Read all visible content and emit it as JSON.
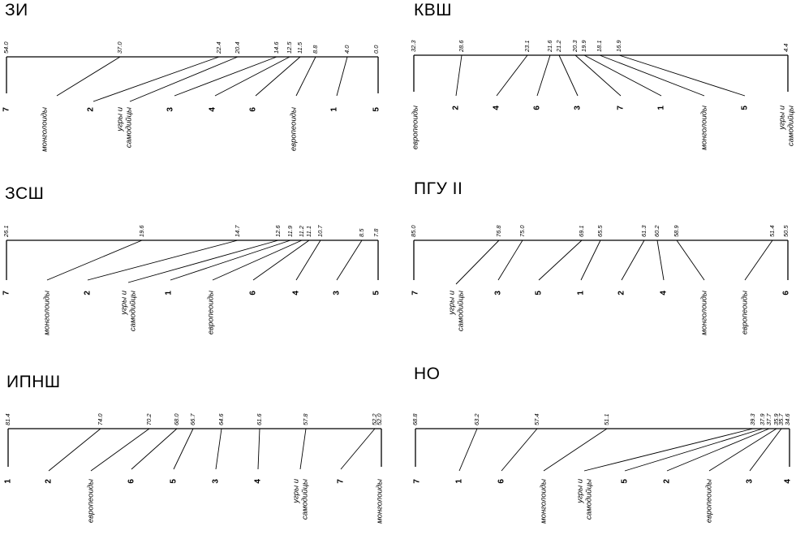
{
  "panels": [
    {
      "title": "ЗИ",
      "ticks": [
        "54.0",
        "37.0",
        "22.4",
        "20.4",
        "14.6",
        "12.5",
        "11.5",
        "8.8",
        "4.0",
        "0.0"
      ],
      "leaves": [
        [
          "7"
        ],
        [
          "монголоиды"
        ],
        [
          "2"
        ],
        [
          "угры и",
          "самодийцы"
        ],
        [
          "3"
        ],
        [
          "4"
        ],
        [
          "6"
        ],
        [
          "европеоиды"
        ],
        [
          "1"
        ],
        [
          "5"
        ]
      ]
    },
    {
      "title": "КВШ",
      "ticks": [
        "32.3",
        "28.6",
        "23.1",
        "21.6",
        "21.2",
        "20.3",
        "19.9",
        "18.1",
        "16.9",
        "4.4"
      ],
      "leaves": [
        [
          "европеоиды"
        ],
        [
          "2"
        ],
        [
          "4"
        ],
        [
          "6"
        ],
        [
          "3"
        ],
        [
          "7"
        ],
        [
          "1"
        ],
        [
          "монголоиды"
        ],
        [
          "5"
        ],
        [
          "угры и",
          "самодийцы"
        ]
      ]
    },
    {
      "title": "ЗСШ",
      "ticks": [
        "26.1",
        "19.6",
        "14.7",
        "12.6",
        "11.9",
        "11.2",
        "11.1",
        "10.7",
        "8.5",
        "7.8"
      ],
      "leaves": [
        [
          "7"
        ],
        [
          "монголоиды"
        ],
        [
          "2"
        ],
        [
          "угры и",
          "самодийцы"
        ],
        [
          "1"
        ],
        [
          "европеоиды"
        ],
        [
          "6"
        ],
        [
          "4"
        ],
        [
          "3"
        ],
        [
          "5"
        ]
      ]
    },
    {
      "title": "ПГУ II",
      "ticks": [
        "85.0",
        "76.8",
        "75.0",
        "69.1",
        "65.5",
        "61.3",
        "60.2",
        "58.9",
        "51.4",
        "50.5"
      ],
      "leaves": [
        [
          "7"
        ],
        [
          "угры и",
          "самодийцы"
        ],
        [
          "3"
        ],
        [
          "5"
        ],
        [
          "1"
        ],
        [
          "2"
        ],
        [
          "4"
        ],
        [
          "монголоиды"
        ],
        [
          "европеоиды"
        ],
        [
          "6"
        ]
      ]
    },
    {
      "title": "ИПНШ",
      "ticks": [
        "81.4",
        "74.0",
        "70.2",
        "68.0",
        "66.7",
        "64.6",
        "61.6",
        "57.8",
        "52.2",
        "52.0"
      ],
      "leaves": [
        [
          "1"
        ],
        [
          "2"
        ],
        [
          "европеоиды"
        ],
        [
          "6"
        ],
        [
          "5"
        ],
        [
          "3"
        ],
        [
          "4"
        ],
        [
          "угры и",
          "самодийцы"
        ],
        [
          "7"
        ],
        [
          "монголоиды"
        ]
      ]
    },
    {
      "title": "НО",
      "ticks": [
        "68.8",
        "63.2",
        "57.4",
        "51.1",
        "39.3",
        "37.9",
        "37.7",
        "35.9",
        "35.7",
        "34.6"
      ],
      "leaves": [
        [
          "7"
        ],
        [
          "1"
        ],
        [
          "6"
        ],
        [
          "монголоиды"
        ],
        [
          "угры и",
          "самодийцы"
        ],
        [
          "5"
        ],
        [
          "2"
        ],
        [
          "европеоиды"
        ],
        [
          "3"
        ],
        [
          "4"
        ]
      ]
    }
  ]
}
